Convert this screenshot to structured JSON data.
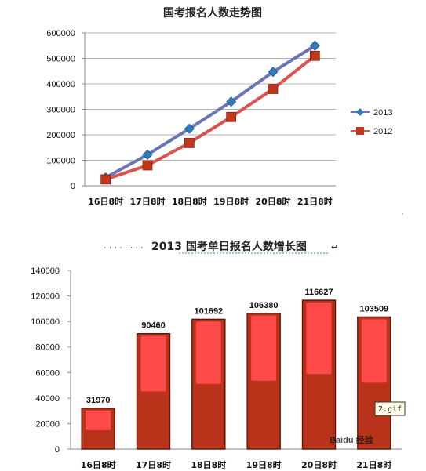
{
  "chart_data": [
    {
      "type": "line",
      "title": "国考报名人数走势图",
      "categories": [
        "16日8时",
        "17日8时",
        "18日8时",
        "19日8时",
        "20日8时",
        "21日8时"
      ],
      "ylim": [
        0,
        600000
      ],
      "yticks": [
        "0",
        "100000",
        "200000",
        "300000",
        "400000",
        "500000",
        "600000"
      ],
      "grid": true,
      "legend_position": "right",
      "series": [
        {
          "name": "2013",
          "color": "#6a74b8",
          "marker_color": "#2e7bbd",
          "marker": "diamond",
          "values": [
            31970,
            122000,
            224000,
            330000,
            447000,
            550000
          ]
        },
        {
          "name": "2012",
          "color": "#d9534f",
          "marker_color": "#c0381b",
          "marker": "square",
          "values": [
            25000,
            80000,
            168000,
            270000,
            380000,
            510000
          ]
        }
      ]
    },
    {
      "type": "bar",
      "title": "2013 国考单日报名人数增长图",
      "title_prefix": "· · · · · · · ·",
      "categories": [
        "16日8时",
        "17日8时",
        "18日8时",
        "19日8时",
        "20日8时",
        "21日8时"
      ],
      "values": [
        31970,
        90460,
        101692,
        106380,
        116627,
        103509
      ],
      "data_labels": [
        "31970",
        "90460",
        "101692",
        "106380",
        "116627",
        "103509"
      ],
      "ylim": [
        0,
        140000
      ],
      "yticks": [
        "0",
        "20000",
        "40000",
        "60000",
        "80000",
        "100000",
        "120000",
        "140000"
      ],
      "bar_color": "#b8331a",
      "highlight_color": "#ff4a4a",
      "grid": false
    }
  ],
  "overlay_label": "2.gif",
  "watermark": "Baidu 经验"
}
